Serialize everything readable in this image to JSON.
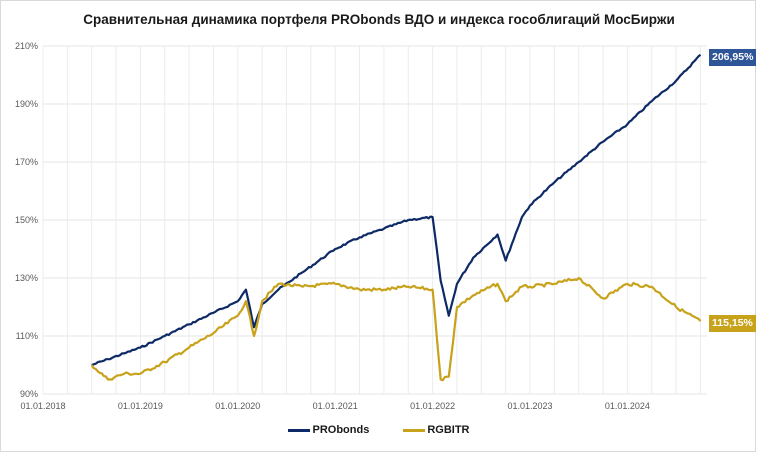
{
  "chart_data": {
    "type": "line",
    "title": "Сравнительная динамика портфеля PRObonds ВДО и индекса гособлигаций МосБиржи",
    "xlabel": "",
    "ylabel": "",
    "ylim": [
      90,
      210
    ],
    "y_ticks": [
      "90%",
      "110%",
      "130%",
      "150%",
      "170%",
      "190%",
      "210%"
    ],
    "x_ticks": [
      "01.01.2018",
      "01.01.2019",
      "01.01.2020",
      "01.01.2021",
      "01.01.2022",
      "01.01.2023",
      "01.01.2024"
    ],
    "grid": true,
    "legend_position": "bottom",
    "x": [
      "2018-07",
      "2018-09",
      "2018-11",
      "2019-01",
      "2019-04",
      "2019-07",
      "2019-10",
      "2020-01",
      "2020-02",
      "2020-03",
      "2020-04",
      "2020-06",
      "2020-09",
      "2021-01",
      "2021-04",
      "2021-07",
      "2021-10",
      "2022-01",
      "2022-02",
      "2022-03",
      "2022-04",
      "2022-06",
      "2022-09",
      "2022-10",
      "2022-12",
      "2023-01",
      "2023-04",
      "2023-07",
      "2023-10",
      "2024-01",
      "2024-04",
      "2024-07",
      "2024-10"
    ],
    "series": [
      {
        "name": "PRObonds",
        "color": "#0e2a66",
        "values": [
          100,
          102,
          104,
          106,
          110,
          114,
          118,
          122,
          126,
          113,
          121,
          126,
          132,
          140,
          144,
          147,
          150,
          151,
          129,
          117,
          128,
          137,
          145,
          136,
          151,
          155,
          163,
          170,
          177,
          183,
          191,
          198,
          206.95
        ]
      },
      {
        "name": "RGBITR",
        "color": "#c8a21a",
        "values": [
          100,
          95,
          97,
          97,
          101,
          106,
          111,
          117,
          122,
          110,
          122,
          128,
          127,
          128,
          126,
          126,
          127,
          126,
          95,
          96,
          120,
          124,
          128,
          122,
          127,
          127,
          128,
          130,
          123,
          128,
          127,
          120,
          115.15
        ]
      }
    ],
    "end_labels": [
      {
        "series": "PRObonds",
        "text": "206,95%"
      },
      {
        "series": "RGBITR",
        "text": "115,15%"
      }
    ]
  },
  "legend": [
    {
      "label": "PRObonds",
      "color": "#0e2a66"
    },
    {
      "label": "RGBITR",
      "color": "#c8a21a"
    }
  ]
}
